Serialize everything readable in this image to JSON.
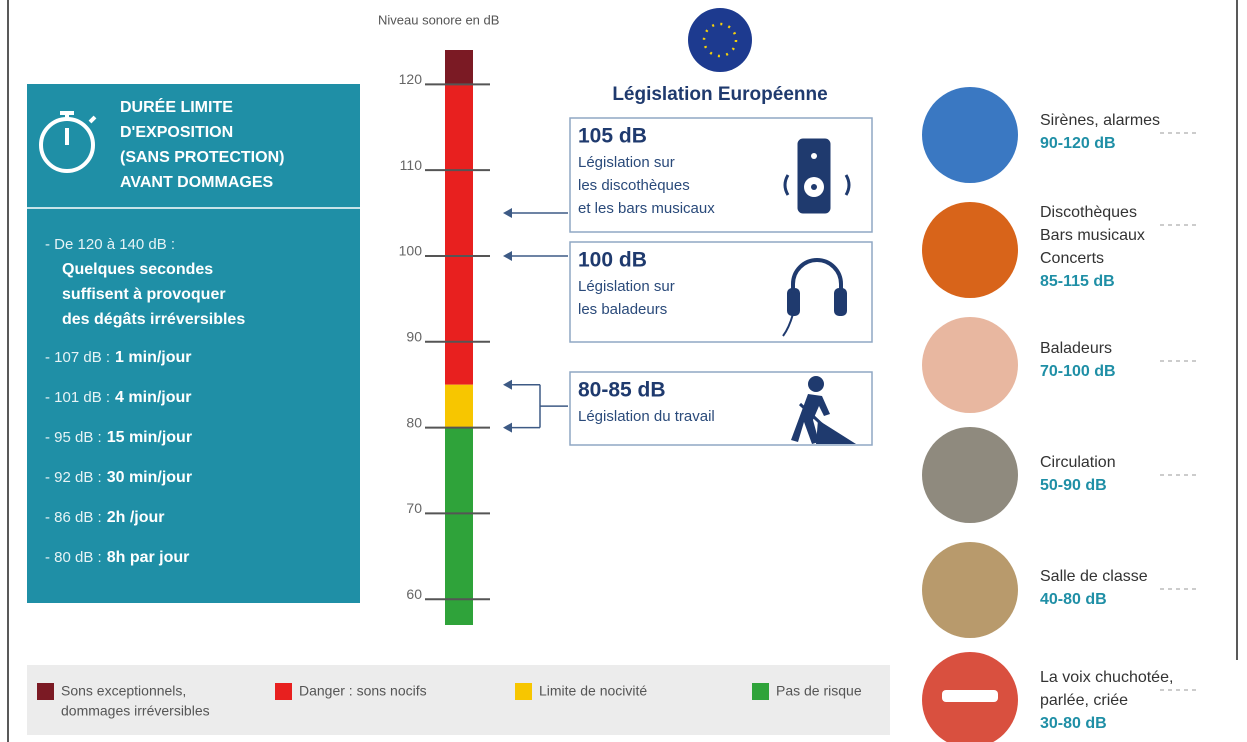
{
  "scale": {
    "label": "Niveau sonore en dB",
    "lim": [
      57,
      124
    ],
    "ticks": [
      60,
      70,
      80,
      90,
      100,
      110,
      120
    ]
  },
  "legislation": {
    "title": "Législation Européenne",
    "boxes": [
      {
        "level": "105 dB",
        "lines": [
          "Législation sur",
          "les discothèques",
          "et les bars musicaux"
        ],
        "arrows": [
          105
        ]
      },
      {
        "level": "100 dB",
        "lines": [
          "Législation sur",
          "les baladeurs"
        ],
        "arrows": [
          100
        ]
      },
      {
        "level": "80-85 dB",
        "lines": [
          "Législation du travail"
        ],
        "arrows": [
          85,
          80
        ]
      }
    ]
  },
  "exposure": {
    "title": [
      "DURÉE LIMITE",
      "D'EXPOSITION",
      "(SANS PROTECTION)",
      "AVANT DOMMAGES"
    ],
    "items": [
      {
        "text": "- De 120 à 140 dB :",
        "bold": [
          "Quelques secondes",
          "suffisent à provoquer",
          "des dégâts irréversibles"
        ]
      },
      {
        "text": "- 107 dB :",
        "bold": [
          "1 min/jour"
        ]
      },
      {
        "text": "- 101 dB :",
        "bold": [
          "4 min/jour"
        ]
      },
      {
        "text": "- 95 dB :",
        "bold": [
          "15 min/jour"
        ]
      },
      {
        "text": "- 92 dB :",
        "bold": [
          "30 min/jour"
        ]
      },
      {
        "text": "- 86 dB :",
        "bold": [
          "2h /jour"
        ]
      },
      {
        "text": "- 80 dB :",
        "bold": [
          "8h par jour"
        ]
      }
    ]
  },
  "legend": [
    {
      "label": [
        "Sons exceptionnels,",
        "dommages irréversibles"
      ],
      "color": "#7b1a24",
      "range": [
        120,
        124
      ]
    },
    {
      "label": [
        "Danger : sons nocifs"
      ],
      "color": "#e8201f",
      "range": [
        85,
        120
      ]
    },
    {
      "label": [
        "Limite de nocivité"
      ],
      "color": "#f7c600",
      "range": [
        80,
        85
      ]
    },
    {
      "label": [
        "Pas de risque"
      ],
      "color": "#2fa33a",
      "range": [
        57,
        80
      ]
    }
  ],
  "sources": [
    {
      "lines": [
        "Sirènes, alarmes"
      ],
      "range": "90-120 dB"
    },
    {
      "lines": [
        "Discothèques",
        "Bars musicaux",
        "Concerts"
      ],
      "range": "85-115 dB"
    },
    {
      "lines": [
        "Baladeurs"
      ],
      "range": "70-100 dB"
    },
    {
      "lines": [
        "Circulation"
      ],
      "range": "50-90 dB"
    },
    {
      "lines": [
        "Salle de classe"
      ],
      "range": "40-80 dB"
    },
    {
      "lines": [
        "La voix chuchotée,",
        "parlée, criée"
      ],
      "range": "30-80 dB"
    }
  ]
}
